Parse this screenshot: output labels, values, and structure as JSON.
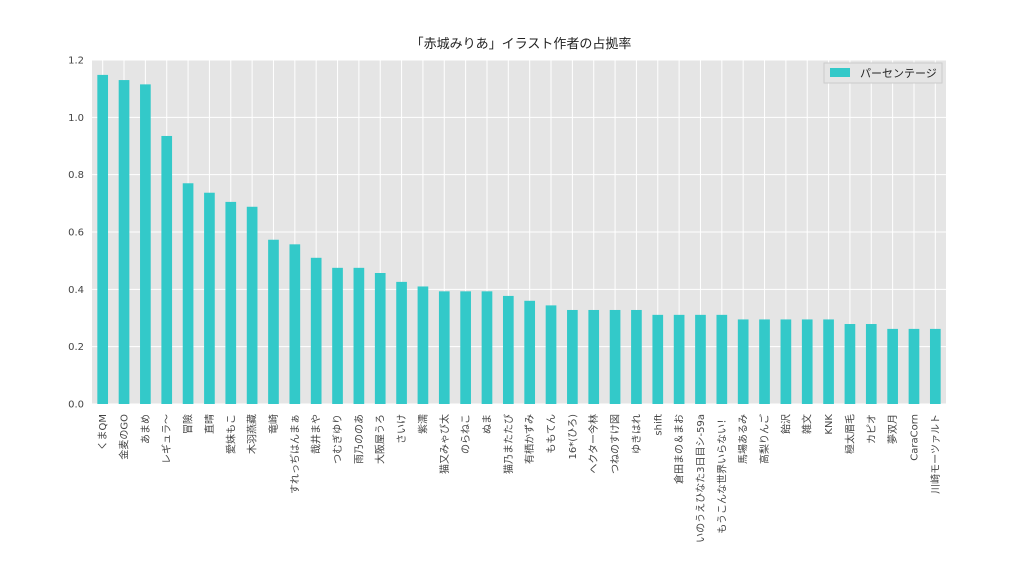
{
  "chart_data": {
    "type": "bar",
    "title": "「赤城みりあ」イラスト作者の占拠率",
    "xlabel": "",
    "ylabel": "",
    "ylim": [
      0,
      1.2
    ],
    "yticks": [
      "0.0",
      "0.2",
      "0.4",
      "0.6",
      "0.8",
      "1.0",
      "1.2"
    ],
    "grid": true,
    "legend": "top-right",
    "bar_color": "#33c9c9",
    "background": "#e5e5e5",
    "categories": [
      "くまQM",
      "金麦のGO",
      "あまめ",
      "レギュラ～",
      "冒險",
      "直晴",
      "愛妹もこ",
      "木羽燕藏",
      "竜崎",
      "すれっぢはんまぁ",
      "哉井まや",
      "つむぎゆり",
      "雨乃ののあ",
      "大阪屋うろ",
      "さいけ",
      "紫濡",
      "猫又みゃび太",
      "のらねこ",
      "ぬま",
      "猫乃またたび",
      "有栖かずみ",
      "ももてん",
      "16*(ひろ)",
      "ヘクター今林",
      "つねのすけ図",
      "ゆきはれ",
      "shift",
      "倉田まの＆まお",
      "いのうえひなた3日目シ-59a",
      "もうこんな世界いらない！",
      "馬場あるみ",
      "高梨りんご",
      "飴沢",
      "雑文",
      "KNK",
      "極太眉毛",
      "カピオ",
      "夢双月",
      "CaraCorn",
      "川崎モーツァルト"
    ],
    "series": [
      {
        "name": "パーセンテージ",
        "values": [
          1.148,
          1.13,
          1.115,
          0.935,
          0.77,
          0.737,
          0.705,
          0.688,
          0.573,
          0.557,
          0.51,
          0.475,
          0.475,
          0.457,
          0.426,
          0.41,
          0.393,
          0.393,
          0.393,
          0.377,
          0.36,
          0.344,
          0.328,
          0.328,
          0.328,
          0.328,
          0.311,
          0.311,
          0.311,
          0.311,
          0.295,
          0.295,
          0.295,
          0.295,
          0.295,
          0.279,
          0.279,
          0.262,
          0.262,
          0.262
        ]
      }
    ]
  }
}
